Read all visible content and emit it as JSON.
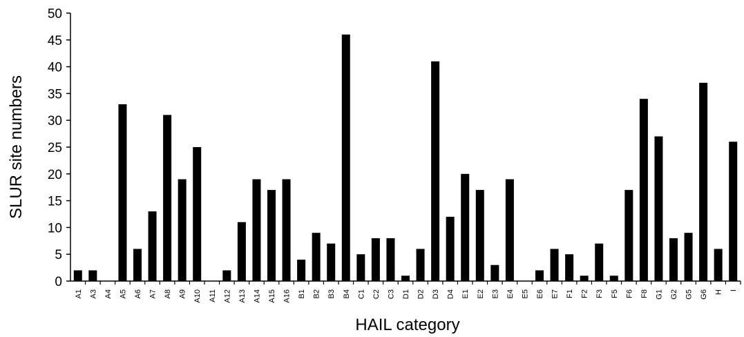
{
  "chart_data": {
    "type": "bar",
    "title": "",
    "xlabel": "HAIL category",
    "ylabel": "SLUR site numbers",
    "ylim": [
      0,
      50
    ],
    "yticks": [
      0,
      5,
      10,
      15,
      20,
      25,
      30,
      35,
      40,
      45,
      50
    ],
    "grid": false,
    "legend": "none",
    "bar_color": "#000000",
    "categories": [
      "A1",
      "A3",
      "A4",
      "A5",
      "A6",
      "A7",
      "A8",
      "A9",
      "A10",
      "A11",
      "A12",
      "A13",
      "A14",
      "A15",
      "A16",
      "B1",
      "B2",
      "B3",
      "B4",
      "C1",
      "C2",
      "C3",
      "D1",
      "D2",
      "D3",
      "D4",
      "E1",
      "E2",
      "E3",
      "E4",
      "E5",
      "E6",
      "E7",
      "F1",
      "F2",
      "F3",
      "F5",
      "F6",
      "F8",
      "G1",
      "G2",
      "G5",
      "G6",
      "H",
      "I"
    ],
    "values": [
      2,
      2,
      0,
      33,
      6,
      13,
      31,
      19,
      25,
      0,
      2,
      11,
      19,
      17,
      19,
      4,
      9,
      7,
      46,
      5,
      8,
      8,
      1,
      6,
      41,
      12,
      20,
      17,
      3,
      19,
      0,
      2,
      6,
      5,
      1,
      7,
      1,
      17,
      34,
      27,
      8,
      9,
      37,
      6,
      26
    ]
  }
}
